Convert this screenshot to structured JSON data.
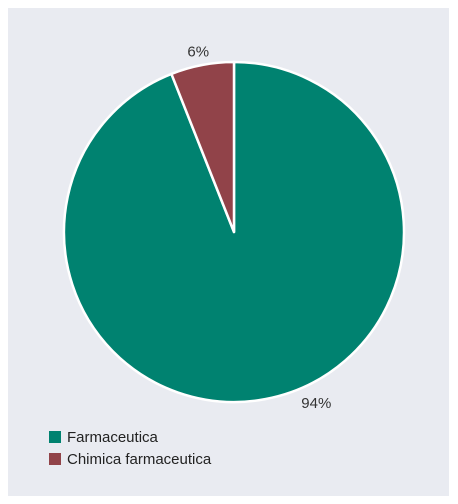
{
  "chart_data": {
    "type": "pie",
    "slices": [
      {
        "label": "Farmaceutica",
        "value": 94,
        "value_label": "94%",
        "color": "#008270"
      },
      {
        "label": "Chimica farmaceutica",
        "value": 6,
        "value_label": "6%",
        "color": "#914349"
      }
    ],
    "legend_placement": "bottom-left",
    "background_color": "#e9ebf1"
  }
}
